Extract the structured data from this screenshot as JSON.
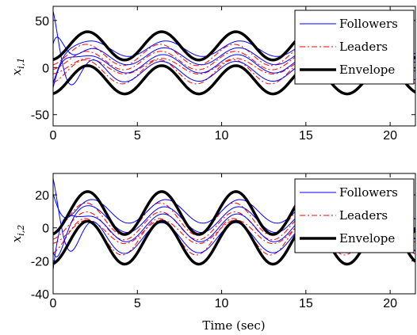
{
  "colors": {
    "followers": "#0000ff",
    "leaders": "#ff0000",
    "envelope": "#000000"
  },
  "chart_data": [
    {
      "type": "line",
      "ylabel": "x_{i,1}",
      "ylabel_main": "x",
      "ylabel_sub": "i,1",
      "xlabel": "",
      "xlim": [
        0,
        21.5
      ],
      "ylim": [
        -62,
        65
      ],
      "xticks": [
        "0",
        "5",
        "10",
        "15",
        "20"
      ],
      "yticks": [
        "50",
        "0",
        "-50"
      ],
      "legend": {
        "position": "top-right",
        "entries": [
          "Followers",
          "Leaders",
          "Envelope"
        ]
      },
      "model": {
        "period": 4.4,
        "upper_center": 23,
        "lower_center": -13,
        "amplitude": 15,
        "leader_offsets": [
          -6,
          4,
          14,
          -16
        ],
        "follower_offsets": [
          -9,
          -1,
          7,
          15
        ],
        "follower_initial": [
          60,
          -35,
          -50,
          40
        ]
      },
      "series": [
        {
          "name": "Followers",
          "style": "solid-thin"
        },
        {
          "name": "Leaders",
          "style": "dash-dot"
        },
        {
          "name": "Envelope",
          "style": "solid-thick"
        }
      ]
    },
    {
      "type": "line",
      "ylabel": "x_{i,2}",
      "ylabel_main": "x",
      "ylabel_sub": "i,2",
      "xlabel": "Time (sec)",
      "xlim": [
        0,
        21.5
      ],
      "ylim": [
        -40,
        33
      ],
      "xticks": [
        "0",
        "5",
        "10",
        "15",
        "20"
      ],
      "yticks": [
        "20",
        "0",
        "-20",
        "-40"
      ],
      "legend": {
        "position": "top-right",
        "entries": [
          "Followers",
          "Leaders",
          "Envelope"
        ]
      },
      "model": {
        "period": 4.4,
        "upper_center": 9,
        "lower_center": -9,
        "amplitude": 13,
        "leader_offsets": [
          -4,
          2,
          9,
          -9
        ],
        "follower_offsets": [
          -6,
          0,
          5,
          10
        ],
        "follower_initial": [
          30,
          -40,
          25,
          -15
        ]
      },
      "series": [
        {
          "name": "Followers",
          "style": "solid-thin"
        },
        {
          "name": "Leaders",
          "style": "dash-dot"
        },
        {
          "name": "Envelope",
          "style": "solid-thick"
        }
      ]
    }
  ]
}
